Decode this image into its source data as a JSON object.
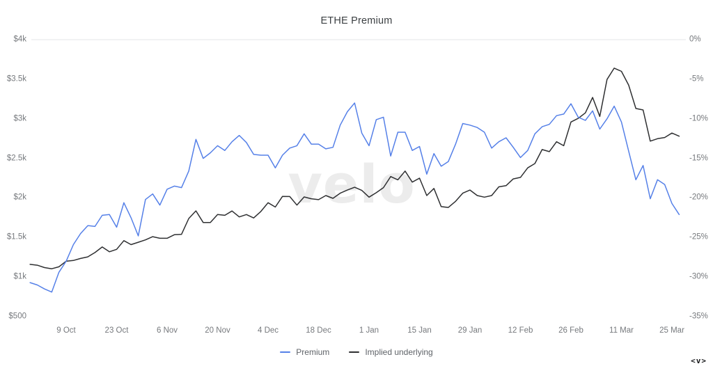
{
  "title": "ETHE Premium",
  "watermark": "velo",
  "logo": "<v>",
  "legend": [
    {
      "label": "Premium",
      "color": "#5580e8"
    },
    {
      "label": "Implied underlying",
      "color": "#2e2f31"
    }
  ],
  "colors": {
    "background": "#ffffff",
    "gridline": "#e3e5e7",
    "axis_text": "#76797d",
    "premium_line": "#5580e8",
    "implied_line": "#2e2f31",
    "watermark": "#ececec"
  },
  "chart_data": {
    "type": "line",
    "title": "ETHE Premium",
    "grid": "top-line-only",
    "legend_position": "bottom-center",
    "x_start": "29 Sep",
    "x_step_days": 2,
    "x_tick_labels": [
      "9 Oct",
      "23 Oct",
      "6 Nov",
      "20 Nov",
      "4 Dec",
      "18 Dec",
      "1 Jan",
      "15 Jan",
      "29 Jan",
      "12 Feb",
      "26 Feb",
      "11 Mar",
      "25 Mar"
    ],
    "x_tick_indices": [
      5,
      12,
      19,
      26,
      33,
      40,
      47,
      54,
      61,
      68,
      75,
      82,
      89
    ],
    "left_axis": {
      "labels": [
        "$4k",
        "$3.5k",
        "$3k",
        "$2.5k",
        "$2k",
        "$1.5k",
        "$1k",
        "$500"
      ],
      "min": 500,
      "max": 4000,
      "unit": "USD"
    },
    "right_axis": {
      "labels": [
        "0%",
        "-5%",
        "-10%",
        "-15%",
        "-20%",
        "-25%",
        "-30%",
        "-35%"
      ],
      "min": -35,
      "max": 0,
      "unit": "%"
    },
    "series": [
      {
        "name": "Premium",
        "axis": "right",
        "unit": "%",
        "color": "#5580e8",
        "values": [
          -30.7,
          -31.0,
          -31.5,
          -31.9,
          -29.4,
          -28.0,
          -25.9,
          -24.5,
          -23.5,
          -23.6,
          -22.2,
          -22.1,
          -23.7,
          -20.6,
          -22.5,
          -24.8,
          -20.2,
          -19.5,
          -20.9,
          -18.9,
          -18.5,
          -18.7,
          -16.6,
          -12.6,
          -15.0,
          -14.3,
          -13.4,
          -14.0,
          -12.9,
          -12.1,
          -13.0,
          -14.5,
          -14.6,
          -14.6,
          -16.2,
          -14.6,
          -13.7,
          -13.4,
          -11.9,
          -13.2,
          -13.2,
          -13.8,
          -13.6,
          -10.8,
          -9.1,
          -8.0,
          -11.8,
          -13.4,
          -10.1,
          -9.8,
          -14.7,
          -11.7,
          -11.7,
          -14.0,
          -13.5,
          -17.0,
          -14.4,
          -16.0,
          -15.4,
          -13.2,
          -10.6,
          -10.8,
          -11.1,
          -11.7,
          -13.7,
          -12.9,
          -12.4,
          -13.6,
          -14.9,
          -14.0,
          -11.9,
          -11.0,
          -10.7,
          -9.6,
          -9.4,
          -8.1,
          -9.8,
          -10.2,
          -9.0,
          -11.3,
          -10.0,
          -8.4,
          -10.4,
          -14.1,
          -17.7,
          -15.9,
          -20.1,
          -17.7,
          -18.3,
          -20.7,
          -22.1
        ]
      },
      {
        "name": "Implied underlying",
        "axis": "left",
        "unit": "USD",
        "color": "#2e2f31",
        "values": [
          1160,
          1150,
          1120,
          1105,
          1130,
          1200,
          1210,
          1235,
          1255,
          1310,
          1380,
          1320,
          1350,
          1460,
          1410,
          1440,
          1470,
          1510,
          1490,
          1490,
          1535,
          1540,
          1740,
          1837,
          1690,
          1690,
          1790,
          1780,
          1835,
          1760,
          1790,
          1747,
          1829,
          1940,
          1885,
          2020,
          2018,
          1910,
          2013,
          1990,
          1978,
          2030,
          1995,
          2060,
          2100,
          2135,
          2095,
          2010,
          2066,
          2130,
          2270,
          2229,
          2340,
          2200,
          2250,
          2030,
          2120,
          1890,
          1880,
          1957,
          2060,
          2100,
          2030,
          2010,
          2030,
          2140,
          2155,
          2240,
          2260,
          2380,
          2435,
          2611,
          2585,
          2710,
          2660,
          2960,
          3005,
          3075,
          3270,
          3030,
          3497,
          3640,
          3600,
          3425,
          3130,
          3112,
          2718,
          2749,
          2764,
          2820,
          2780
        ]
      }
    ]
  }
}
